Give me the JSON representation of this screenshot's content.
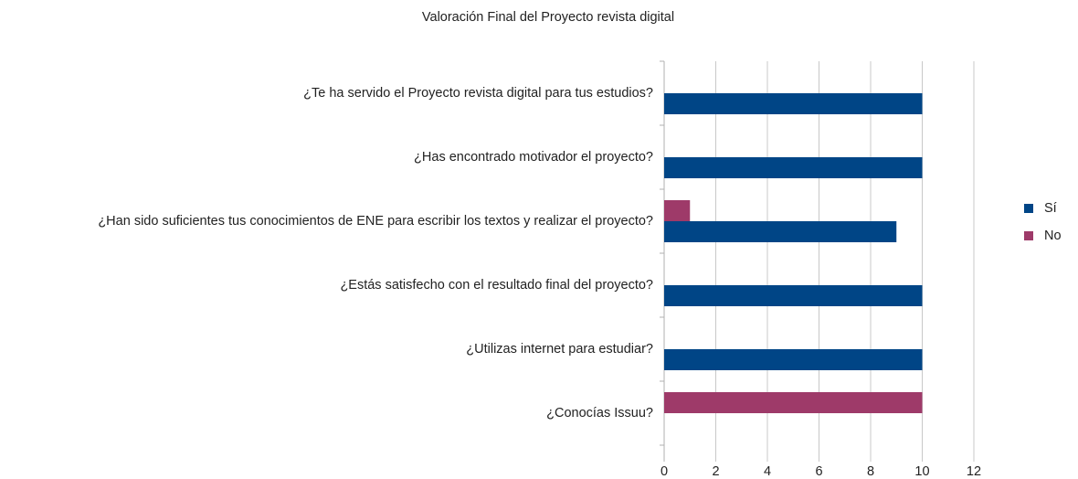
{
  "chart_data": {
    "type": "hbar",
    "title": "Valoración Final del Proyecto revista digital",
    "categories": [
      "¿Te ha servido el Proyecto revista digital para tus estudios?",
      "¿Has encontrado motivador el proyecto?",
      "¿Han sido suficientes tus conocimientos de ENE para escribir los textos y realizar el proyecto?",
      "¿Estás satisfecho con el resultado final del proyecto?",
      "¿Utilizas internet para estudiar?",
      "¿Conocías Issuu?"
    ],
    "series": [
      {
        "name": "Sí",
        "color": "#004586",
        "values": [
          10,
          10,
          9,
          10,
          10,
          0
        ]
      },
      {
        "name": "No",
        "color": "#9e3a69",
        "values": [
          0,
          0,
          1,
          0,
          0,
          10
        ]
      }
    ],
    "xlim": [
      0,
      12
    ],
    "xticks": [
      0,
      2,
      4,
      6,
      8,
      10,
      12
    ],
    "grid": true,
    "legend": "right"
  }
}
